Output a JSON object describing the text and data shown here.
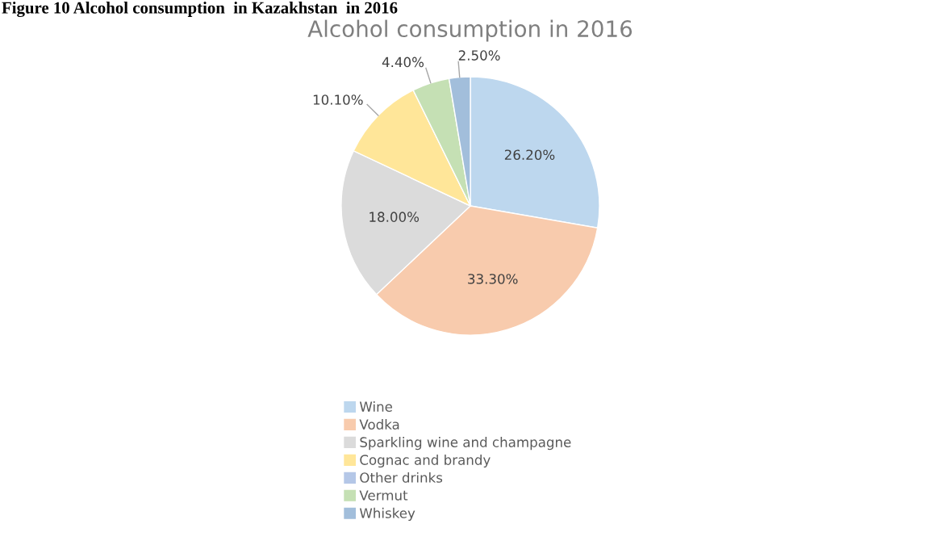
{
  "chart_data": {
    "type": "pie",
    "title": "Alcohol consumption in 2016",
    "annotations": [
      "Figure 10 Alcohol consumption  in Kazakhstan  in 2016"
    ],
    "categories": [
      "Wine",
      "Vodka",
      "Sparkling wine and champagne",
      "Cognac and brandy",
      "Other drinks",
      "Vermut",
      "Whiskey"
    ],
    "values": [
      26.2,
      33.3,
      18.0,
      10.1,
      0,
      4.4,
      2.5
    ],
    "value_labels": [
      "26.20%",
      "33.30%",
      "18.00%",
      "10.10%",
      null,
      "4.40%",
      "2.50%"
    ],
    "colors": [
      "#bdd7ee",
      "#f8cbad",
      "#dbdbdb",
      "#ffe699",
      "#b4c7e7",
      "#c5e0b4",
      "#a2bedb"
    ],
    "legend": "bottom"
  }
}
